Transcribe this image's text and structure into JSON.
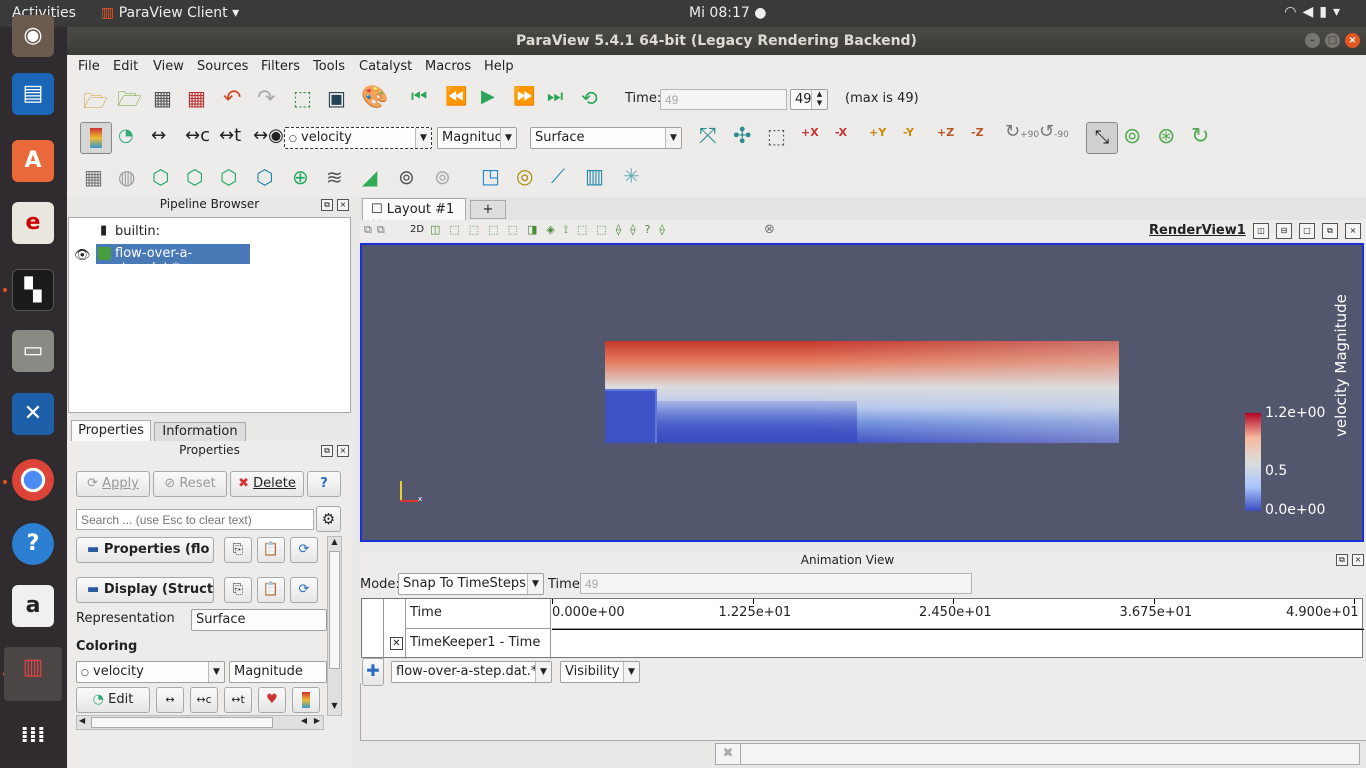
{
  "topbar": {
    "activities": "Activities",
    "app_name": "ParaView Client",
    "clock": "Mi 08:17 ●"
  },
  "window": {
    "title": "ParaView 5.4.1 64-bit (Legacy Rendering Backend)"
  },
  "menu": [
    "File",
    "Edit",
    "View",
    "Sources",
    "Filters",
    "Tools",
    "Catalyst",
    "Macros",
    "Help"
  ],
  "time_toolbar": {
    "time_label": "Time:",
    "time_value": "49",
    "timestep": "49",
    "max_label": "(max is 49)"
  },
  "color_toolbar": {
    "array": "velocity",
    "component": "Magnituc",
    "representation": "Surface",
    "rot_plus": "+90",
    "rot_minus": "-90"
  },
  "view_buttons": [
    "+X",
    "-X",
    "+Y",
    "-Y",
    "+Z",
    "-Z"
  ],
  "pipeline": {
    "title": "Pipeline Browser",
    "root": "builtin:",
    "item": "flow-over-a-step.dat.*"
  },
  "tabs": {
    "properties": "Properties",
    "information": "Information"
  },
  "properties": {
    "title": "Properties",
    "apply": "Apply",
    "reset": "Reset",
    "delete": "Delete",
    "help": "?",
    "search_placeholder": "Search ... (use Esc to clear text)",
    "section_properties": "Properties (flo",
    "section_display": "Display (Struct",
    "representation_label": "Representation",
    "representation_value": "Surface",
    "coloring_label": "Coloring",
    "coloring_array": "velocity",
    "coloring_component": "Magnitude",
    "edit": "Edit"
  },
  "layout": {
    "tab": "Layout #1",
    "add": "+",
    "mode_2d": "2D",
    "render_view": "RenderView1"
  },
  "colorbar": {
    "title": "velocity Magnitude",
    "max": "1.2e+00",
    "mid": "0.5",
    "min": "0.0e+00",
    "max_value": 1.2,
    "min_value": 0.0,
    "colors": [
      "#3b4cc0",
      "#aac7fd",
      "#dddcdc",
      "#f7b89c",
      "#b40426"
    ]
  },
  "animation": {
    "title": "Animation View",
    "mode_label": "Mode:",
    "mode_value": "Snap To TimeSteps",
    "time_label": "Time",
    "time_value": "49",
    "col_time": "Time",
    "ticks": [
      "0.000e+00",
      "1.225e+01",
      "2.450e+01",
      "3.675e+01",
      "4.900e+01"
    ],
    "track": "TimeKeeper1 - Time",
    "source": "flow-over-a-step.dat.*",
    "property": "Visibility"
  }
}
